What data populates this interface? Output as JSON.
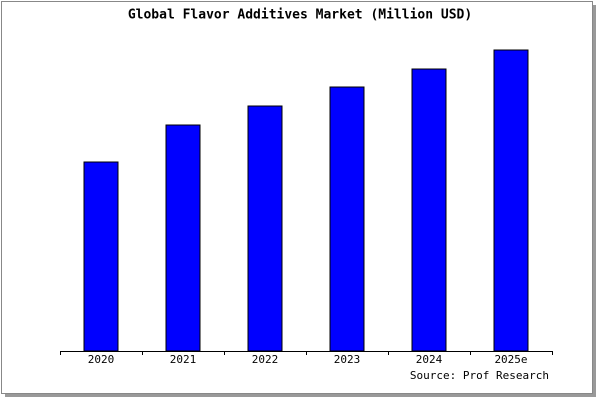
{
  "chart_data": {
    "type": "bar",
    "title": "Global Flavor Additives Market (Million USD)",
    "categories": [
      "2020",
      "2021",
      "2022",
      "2023",
      "2024",
      "2025e"
    ],
    "values": [
      189,
      226,
      245,
      264,
      282,
      301
    ],
    "color": "#0000ff",
    "ylim": [
      0,
      303
    ],
    "source": "Source: Prof Research"
  }
}
